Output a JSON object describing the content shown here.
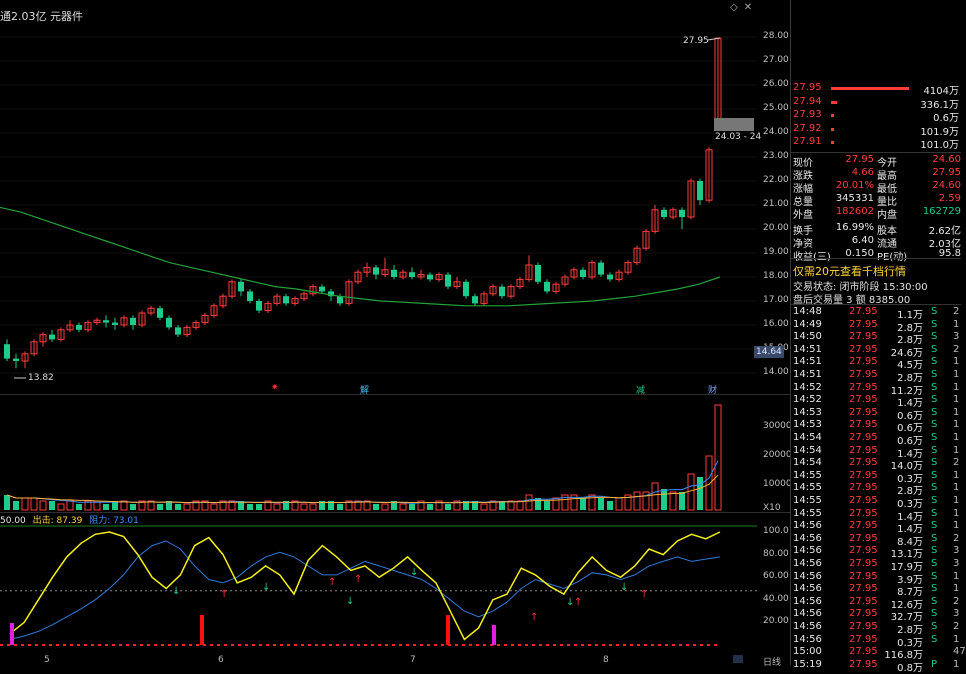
{
  "header": {
    "title": "通2.03亿 元器件",
    "icons": [
      "diamond-icon",
      "close-icon"
    ]
  },
  "price_axis": [
    "28.00",
    "27.00",
    "26.00",
    "25.00",
    "24.00",
    "23.00",
    "22.00",
    "21.00",
    "20.00",
    "19.00",
    "18.00",
    "17.00",
    "16.00",
    "15.00",
    "14.00"
  ],
  "price_tags": {
    "current": "14.64",
    "high_label": "27.95",
    "low_label": "13.82",
    "gap_label": "24.03 - 24"
  },
  "events": [
    {
      "label": "✷",
      "color": "#ff3030"
    },
    {
      "label": "解",
      "color": "#3cc0ff"
    },
    {
      "label": "减",
      "color": "#1ecb8a"
    },
    {
      "label": "财",
      "color": "#7a9cff"
    }
  ],
  "volume_axis": [
    "30000",
    "20000",
    "10000",
    "X10"
  ],
  "indicator": {
    "value_label": "50.00",
    "out_label": "出击: 87.39",
    "resist_label": "阻力: 73.01",
    "axis": [
      "100.0",
      "80.00",
      "60.00",
      "40.00",
      "20.00"
    ]
  },
  "x_axis": [
    "5",
    "6",
    "7",
    "8"
  ],
  "bottom_tab": "日线",
  "order_book": [
    {
      "price": "27.95",
      "vol": "4104万",
      "bar": 1.0
    },
    {
      "price": "27.94",
      "vol": "336.1万",
      "bar": 0.08
    },
    {
      "price": "27.93",
      "vol": "0.6万",
      "bar": 0.01
    },
    {
      "price": "27.92",
      "vol": "101.9万",
      "bar": 0.02
    },
    {
      "price": "27.91",
      "vol": "101.0万",
      "bar": 0.02
    }
  ],
  "quote": [
    {
      "l1": "现价",
      "v1": "27.95",
      "c1": "red",
      "l2": "今开",
      "v2": "24.60",
      "c2": "red"
    },
    {
      "l1": "涨跌",
      "v1": "4.66",
      "c1": "red",
      "l2": "最高",
      "v2": "27.95",
      "c2": "red"
    },
    {
      "l1": "涨幅",
      "v1": "20.01%",
      "c1": "red",
      "l2": "最低",
      "v2": "24.60",
      "c2": "red"
    },
    {
      "l1": "总量",
      "v1": "345331",
      "c1": "white",
      "l2": "量比",
      "v2": "2.59",
      "c2": "red"
    },
    {
      "l1": "外盘",
      "v1": "182602",
      "c1": "red",
      "l2": "内盘",
      "v2": "162729",
      "c2": "green"
    },
    {
      "l1": "换手",
      "v1": "16.99%",
      "c1": "white",
      "l2": "股本",
      "v2": "2.62亿",
      "c2": "white"
    },
    {
      "l1": "净资",
      "v1": "6.40",
      "c1": "white",
      "l2": "流通",
      "v2": "2.03亿",
      "c2": "white"
    },
    {
      "l1": "收益(三)",
      "v1": "0.150",
      "c1": "white",
      "l2": "PE(动)",
      "v2": "95.8",
      "c2": "white"
    }
  ],
  "promo": "仅需20元查看千档行情",
  "trade_state": "交易状态: 闭市阶段 15:30:00",
  "after_hours": "盘后交易量 3 额 8385.00",
  "ticks": [
    [
      "14:48",
      "27.95",
      "1.1万",
      "S",
      "2"
    ],
    [
      "14:49",
      "27.95",
      "2.8万",
      "S",
      "1"
    ],
    [
      "14:50",
      "27.95",
      "2.8万",
      "S",
      "3"
    ],
    [
      "14:51",
      "27.95",
      "24.6万",
      "S",
      "2"
    ],
    [
      "14:51",
      "27.95",
      "4.5万",
      "S",
      "1"
    ],
    [
      "14:51",
      "27.95",
      "2.8万",
      "S",
      "1"
    ],
    [
      "14:52",
      "27.95",
      "11.2万",
      "S",
      "1"
    ],
    [
      "14:52",
      "27.95",
      "1.4万",
      "S",
      "1"
    ],
    [
      "14:53",
      "27.95",
      "0.6万",
      "S",
      "1"
    ],
    [
      "14:53",
      "27.95",
      "0.6万",
      "S",
      "1"
    ],
    [
      "14:54",
      "27.95",
      "0.6万",
      "S",
      "1"
    ],
    [
      "14:54",
      "27.95",
      "1.4万",
      "S",
      "1"
    ],
    [
      "14:54",
      "27.95",
      "14.0万",
      "S",
      "2"
    ],
    [
      "14:55",
      "27.95",
      "0.3万",
      "S",
      "1"
    ],
    [
      "14:55",
      "27.95",
      "2.8万",
      "S",
      "1"
    ],
    [
      "14:55",
      "27.95",
      "0.3万",
      "S",
      "1"
    ],
    [
      "14:55",
      "27.95",
      "1.4万",
      "S",
      "1"
    ],
    [
      "14:56",
      "27.95",
      "1.4万",
      "S",
      "1"
    ],
    [
      "14:56",
      "27.95",
      "8.4万",
      "S",
      "2"
    ],
    [
      "14:56",
      "27.95",
      "13.1万",
      "S",
      "3"
    ],
    [
      "14:56",
      "27.95",
      "17.9万",
      "S",
      "3"
    ],
    [
      "14:56",
      "27.95",
      "3.9万",
      "S",
      "1"
    ],
    [
      "14:56",
      "27.95",
      "8.7万",
      "S",
      "1"
    ],
    [
      "14:56",
      "27.95",
      "12.6万",
      "S",
      "2"
    ],
    [
      "14:56",
      "27.95",
      "32.7万",
      "S",
      "3"
    ],
    [
      "14:56",
      "27.95",
      "2.8万",
      "S",
      "2"
    ],
    [
      "14:56",
      "27.95",
      "0.3万",
      "S",
      "1"
    ],
    [
      "15:00",
      "27.95",
      "116.8万",
      "",
      "47"
    ],
    [
      "15:19",
      "27.95",
      "0.8万",
      "P",
      "1"
    ]
  ],
  "chart_data": {
    "type": "candlestick",
    "ylim": [
      13.5,
      28.4
    ],
    "candles": [
      [
        15.2,
        14.6,
        15.4,
        14.5
      ],
      [
        14.6,
        14.5,
        14.8,
        14.2
      ],
      [
        14.5,
        14.8,
        14.9,
        14.2
      ],
      [
        14.8,
        15.3,
        15.4,
        14.7
      ],
      [
        15.3,
        15.6,
        15.7,
        15.1
      ],
      [
        15.6,
        15.4,
        15.8,
        15.3
      ],
      [
        15.4,
        15.8,
        15.9,
        15.3
      ],
      [
        15.8,
        16.0,
        16.2,
        15.7
      ],
      [
        16.0,
        15.8,
        16.1,
        15.7
      ],
      [
        15.8,
        16.1,
        16.2,
        15.7
      ],
      [
        16.1,
        16.2,
        16.3,
        16.0
      ],
      [
        16.2,
        16.1,
        16.4,
        15.9
      ],
      [
        16.1,
        16.0,
        16.3,
        15.8
      ],
      [
        16.0,
        16.3,
        16.4,
        15.9
      ],
      [
        16.3,
        16.0,
        16.4,
        15.8
      ],
      [
        16.0,
        16.5,
        16.6,
        15.9
      ],
      [
        16.5,
        16.7,
        16.8,
        16.4
      ],
      [
        16.7,
        16.3,
        16.8,
        16.2
      ],
      [
        16.3,
        15.9,
        16.4,
        15.8
      ],
      [
        15.9,
        15.6,
        16.0,
        15.5
      ],
      [
        15.6,
        15.9,
        16.0,
        15.5
      ],
      [
        15.9,
        16.1,
        16.2,
        15.8
      ],
      [
        16.1,
        16.4,
        16.5,
        16.0
      ],
      [
        16.4,
        16.8,
        16.9,
        16.3
      ],
      [
        16.8,
        17.2,
        17.3,
        16.7
      ],
      [
        17.2,
        17.8,
        17.9,
        17.1
      ],
      [
        17.8,
        17.4,
        17.9,
        17.2
      ],
      [
        17.4,
        17.0,
        17.5,
        16.9
      ],
      [
        17.0,
        16.6,
        17.1,
        16.5
      ],
      [
        16.6,
        16.9,
        17.0,
        16.5
      ],
      [
        16.9,
        17.2,
        17.3,
        16.8
      ],
      [
        17.2,
        16.9,
        17.3,
        16.8
      ],
      [
        16.9,
        17.1,
        17.2,
        16.8
      ],
      [
        17.1,
        17.3,
        17.4,
        17.0
      ],
      [
        17.3,
        17.6,
        17.7,
        17.2
      ],
      [
        17.6,
        17.4,
        17.7,
        17.3
      ],
      [
        17.4,
        17.2,
        17.5,
        17.0
      ],
      [
        17.2,
        16.9,
        17.3,
        16.8
      ],
      [
        16.9,
        17.8,
        17.9,
        16.8
      ],
      [
        17.8,
        18.2,
        18.3,
        17.7
      ],
      [
        18.2,
        18.4,
        18.6,
        18.0
      ],
      [
        18.4,
        18.1,
        18.5,
        17.9
      ],
      [
        18.1,
        18.3,
        18.8,
        18.0
      ],
      [
        18.3,
        18.0,
        18.5,
        17.9
      ],
      [
        18.0,
        18.2,
        18.3,
        17.9
      ],
      [
        18.2,
        18.0,
        18.4,
        17.9
      ],
      [
        18.0,
        18.1,
        18.3,
        17.9
      ],
      [
        18.1,
        17.9,
        18.2,
        17.8
      ],
      [
        17.9,
        18.1,
        18.2,
        17.8
      ],
      [
        18.1,
        17.6,
        18.2,
        17.5
      ],
      [
        17.6,
        17.8,
        18.0,
        17.5
      ],
      [
        17.8,
        17.2,
        17.9,
        17.1
      ],
      [
        17.2,
        16.9,
        17.3,
        16.8
      ],
      [
        16.9,
        17.3,
        17.4,
        16.8
      ],
      [
        17.3,
        17.6,
        17.7,
        17.2
      ],
      [
        17.6,
        17.2,
        17.7,
        17.1
      ],
      [
        17.2,
        17.6,
        17.7,
        17.1
      ],
      [
        17.6,
        17.9,
        18.0,
        17.5
      ],
      [
        17.9,
        18.5,
        18.9,
        17.8
      ],
      [
        18.5,
        17.8,
        18.6,
        17.7
      ],
      [
        17.8,
        17.4,
        17.9,
        17.3
      ],
      [
        17.4,
        17.7,
        17.8,
        17.3
      ],
      [
        17.7,
        18.0,
        18.1,
        17.6
      ],
      [
        18.0,
        18.3,
        18.4,
        17.9
      ],
      [
        18.3,
        18.0,
        18.4,
        17.9
      ],
      [
        18.0,
        18.6,
        18.7,
        17.9
      ],
      [
        18.6,
        18.1,
        18.7,
        18.0
      ],
      [
        18.1,
        17.9,
        18.2,
        17.8
      ],
      [
        17.9,
        18.2,
        18.3,
        17.8
      ],
      [
        18.2,
        18.6,
        18.7,
        18.1
      ],
      [
        18.6,
        19.2,
        19.3,
        18.5
      ],
      [
        19.2,
        19.9,
        20.0,
        19.1
      ],
      [
        19.9,
        20.8,
        21.0,
        19.8
      ],
      [
        20.8,
        20.5,
        20.9,
        20.4
      ],
      [
        20.5,
        20.8,
        20.9,
        20.4
      ],
      [
        20.8,
        20.5,
        20.9,
        20.0
      ],
      [
        20.5,
        22.0,
        22.1,
        20.4
      ],
      [
        22.0,
        21.2,
        22.1,
        21.0
      ],
      [
        21.2,
        23.3,
        23.4,
        21.1
      ],
      [
        24.6,
        27.95,
        27.95,
        24.6
      ]
    ],
    "ma_line": [
      20.9,
      20.7,
      20.4,
      20.1,
      19.8,
      19.5,
      19.2,
      18.9,
      18.6,
      18.4,
      18.2,
      18.0,
      17.8,
      17.6,
      17.5,
      17.35,
      17.2,
      17.1,
      17.0,
      16.95,
      16.9,
      16.85,
      16.8,
      16.8,
      16.8,
      16.85,
      16.9,
      16.95,
      17.0,
      17.1,
      17.2,
      17.35,
      17.5,
      17.7,
      18.0
    ],
    "volume": [
      5,
      3,
      4,
      4,
      3,
      3,
      2,
      3,
      2,
      3,
      3,
      2,
      3,
      3,
      2,
      3,
      3,
      2,
      3,
      2,
      2,
      3,
      3,
      2,
      3,
      3,
      3,
      2,
      2,
      3,
      2,
      3,
      3,
      2,
      2,
      3,
      3,
      2,
      3,
      3,
      3,
      2,
      2,
      3,
      2,
      2,
      3,
      2,
      3,
      2,
      3,
      3,
      3,
      2,
      3,
      3,
      3,
      3,
      5,
      4,
      3,
      4,
      5,
      5,
      4,
      5,
      4,
      3,
      4,
      5,
      6,
      6,
      9,
      7,
      6,
      6,
      12,
      11,
      18,
      35
    ],
    "indicator_line_yellow": [
      10,
      20,
      40,
      60,
      78,
      90,
      98,
      100,
      96,
      80,
      60,
      50,
      62,
      88,
      95,
      80,
      55,
      60,
      70,
      62,
      45,
      75,
      88,
      78,
      66,
      70,
      60,
      68,
      78,
      66,
      55,
      30,
      5,
      15,
      40,
      45,
      68,
      62,
      52,
      45,
      64,
      78,
      66,
      60,
      70,
      85,
      80,
      92,
      98,
      94,
      100
    ],
    "indicator_line_blue": [
      5,
      8,
      12,
      18,
      25,
      32,
      40,
      50,
      62,
      78,
      88,
      92,
      85,
      70,
      58,
      55,
      60,
      70,
      78,
      82,
      78,
      70,
      62,
      62,
      68,
      74,
      70,
      66,
      62,
      58,
      50,
      40,
      30,
      25,
      30,
      38,
      50,
      58,
      54,
      50,
      56,
      64,
      62,
      58,
      62,
      70,
      74,
      78,
      74,
      76,
      78
    ]
  }
}
